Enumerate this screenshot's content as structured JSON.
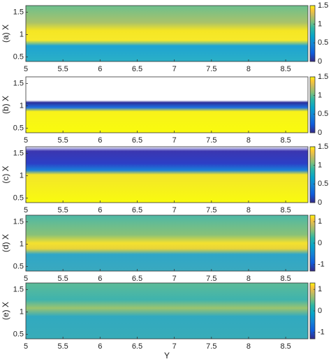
{
  "chart_data": [
    {
      "type": "heatmap",
      "ylabel": "(a) X",
      "xlim": [
        5,
        8.8
      ],
      "xticks": [
        5,
        5.5,
        6,
        6.5,
        7,
        7.5,
        8,
        8.5
      ],
      "ylim": [
        0.4,
        1.65
      ],
      "yticks": [
        0.5,
        1,
        1.5
      ],
      "clim": [
        0,
        1.5
      ],
      "cticks": [
        0,
        0.5,
        1,
        1.5
      ],
      "colormap": "parula"
    },
    {
      "type": "heatmap",
      "ylabel": "(b) X",
      "xlim": [
        5,
        8.8
      ],
      "xticks": [
        5,
        5.5,
        6,
        6.5,
        7,
        7.5,
        8,
        8.5
      ],
      "ylim": [
        0.4,
        1.65
      ],
      "yticks": [
        0.5,
        1,
        1.5
      ],
      "clim": [
        0,
        1.5
      ],
      "cticks": [
        0,
        0.5,
        1,
        1.5
      ],
      "colormap": "parula"
    },
    {
      "type": "heatmap",
      "ylabel": "(c) X",
      "xlim": [
        5,
        8.8
      ],
      "xticks": [
        5,
        5.5,
        6,
        6.5,
        7,
        7.5,
        8,
        8.5
      ],
      "ylim": [
        0.4,
        1.65
      ],
      "yticks": [
        0.5,
        1,
        1.5
      ],
      "clim": [
        0,
        1.5
      ],
      "cticks": [
        0,
        0.5,
        1,
        1.5
      ],
      "colormap": "parula"
    },
    {
      "type": "heatmap",
      "ylabel": "(d) X",
      "xlim": [
        5,
        8.8
      ],
      "xticks": [
        5,
        5.5,
        6,
        6.5,
        7,
        7.5,
        8,
        8.5
      ],
      "ylim": [
        0.4,
        1.65
      ],
      "yticks": [
        0.5,
        1,
        1.5
      ],
      "clim": [
        -1.3,
        1.3
      ],
      "cticks": [
        -1,
        0,
        1
      ],
      "colormap": "parula"
    },
    {
      "type": "heatmap",
      "ylabel": "(e) X",
      "xlabel": "Y",
      "xlim": [
        5,
        8.8
      ],
      "xticks": [
        5,
        5.5,
        6,
        6.5,
        7,
        7.5,
        8,
        8.5
      ],
      "ylim": [
        0.4,
        1.65
      ],
      "yticks": [
        0.5,
        1,
        1.5
      ],
      "clim": [
        -1.3,
        1.3
      ],
      "cticks": [
        -1,
        0,
        1
      ],
      "colormap": "parula"
    }
  ]
}
